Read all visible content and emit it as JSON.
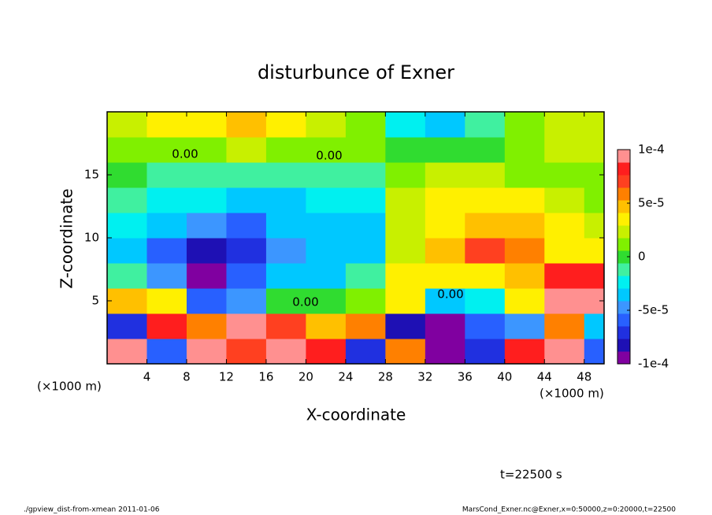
{
  "chart_data": {
    "type": "contour",
    "title": "disturbunce of Exner",
    "x_label": "X-coordinate",
    "y_label": "Z-coordinate",
    "x_unit": "(×1000 m)",
    "time_label": "t=22500 s",
    "footer_left": "./gpview_dist-from-xmean  2011-01-06",
    "footer_right": "MarsCond_Exner.nc@Exner,x=0:50000,z=0:20000,t=22500",
    "annotations": [
      "0.00",
      "0.00",
      "0.00",
      "0.00"
    ],
    "xlim": [
      0,
      50
    ],
    "ylim": [
      0,
      20
    ],
    "xticks": [
      4,
      8,
      12,
      16,
      20,
      24,
      28,
      32,
      36,
      40,
      44,
      48
    ],
    "yticks": [
      5,
      10,
      15
    ],
    "x": [
      2,
      6,
      10,
      14,
      18,
      22,
      26,
      30,
      34,
      38,
      42,
      46,
      50
    ],
    "y": [
      1,
      3,
      5,
      7,
      9,
      11,
      13,
      15,
      17,
      19
    ],
    "z": [
      [
        9e-05,
        -6e-05,
        0.0001,
        7e-05,
        0.0001,
        8e-05,
        -7e-05,
        6e-05,
        -0.0001,
        -7e-05,
        8e-05,
        0.0001,
        -6e-05
      ],
      [
        -7e-05,
        8e-05,
        6e-05,
        0.0001,
        7e-05,
        5e-05,
        6e-05,
        -8e-05,
        -0.0001,
        -6e-05,
        -5e-05,
        6e-05,
        -3e-05
      ],
      [
        5e-05,
        3e-05,
        -6e-05,
        -5e-05,
        0,
        0,
        1e-05,
        3e-05,
        -4e-05,
        -2e-05,
        3e-05,
        9e-05,
        0.0001
      ],
      [
        -1e-05,
        -5e-05,
        -9e-05,
        -6e-05,
        -3e-05,
        -3e-05,
        -1e-05,
        4e-05,
        4e-05,
        3e-05,
        5e-05,
        8e-05,
        8e-05
      ],
      [
        -3e-05,
        -6e-05,
        -8e-05,
        -7e-05,
        -5e-05,
        -4e-05,
        -3e-05,
        2e-05,
        5e-05,
        7e-05,
        6e-05,
        4e-05,
        3e-05
      ],
      [
        -2e-05,
        -3e-05,
        -5e-05,
        -6e-05,
        -4e-05,
        -4e-05,
        -3e-05,
        2e-05,
        4e-05,
        5e-05,
        5e-05,
        3e-05,
        2e-05
      ],
      [
        -1e-05,
        -2e-05,
        -2e-05,
        -3e-05,
        -3e-05,
        -2e-05,
        -2e-05,
        2e-05,
        3e-05,
        3e-05,
        3e-05,
        2e-05,
        1e-05
      ],
      [
        0,
        -1e-05,
        -1e-05,
        -1e-05,
        -1e-05,
        -1e-05,
        -1e-05,
        1e-05,
        2e-05,
        2e-05,
        1e-05,
        1e-05,
        1e-05
      ],
      [
        1e-05,
        1e-05,
        1e-05,
        2e-05,
        1e-05,
        1e-05,
        1e-05,
        0,
        0,
        0,
        1e-05,
        2e-05,
        2e-05
      ],
      [
        2e-05,
        3e-05,
        4e-05,
        5e-05,
        3e-05,
        2e-05,
        1e-05,
        -2e-05,
        -3e-05,
        -1e-05,
        1e-05,
        2e-05,
        2e-05
      ]
    ],
    "clim": [
      -0.0001,
      0.0001
    ],
    "cticks": [
      {
        "value": 0.0001,
        "label": "1e-4"
      },
      {
        "value": 5e-05,
        "label": "5e-5"
      },
      0,
      {
        "value": -5e-05,
        "label": "-5e-5"
      },
      {
        "value": -0.0001,
        "label": "-1e-4"
      }
    ],
    "colors": [
      "#8000a0",
      "#1e10b4",
      "#2030e0",
      "#2860ff",
      "#3c96ff",
      "#00c8ff",
      "#00f0f0",
      "#40f0a0",
      "#30dc30",
      "#80f000",
      "#c8f000",
      "#fff000",
      "#ffc000",
      "#ff8000",
      "#ff4020",
      "#ff1e1e",
      "#ff9090"
    ]
  }
}
